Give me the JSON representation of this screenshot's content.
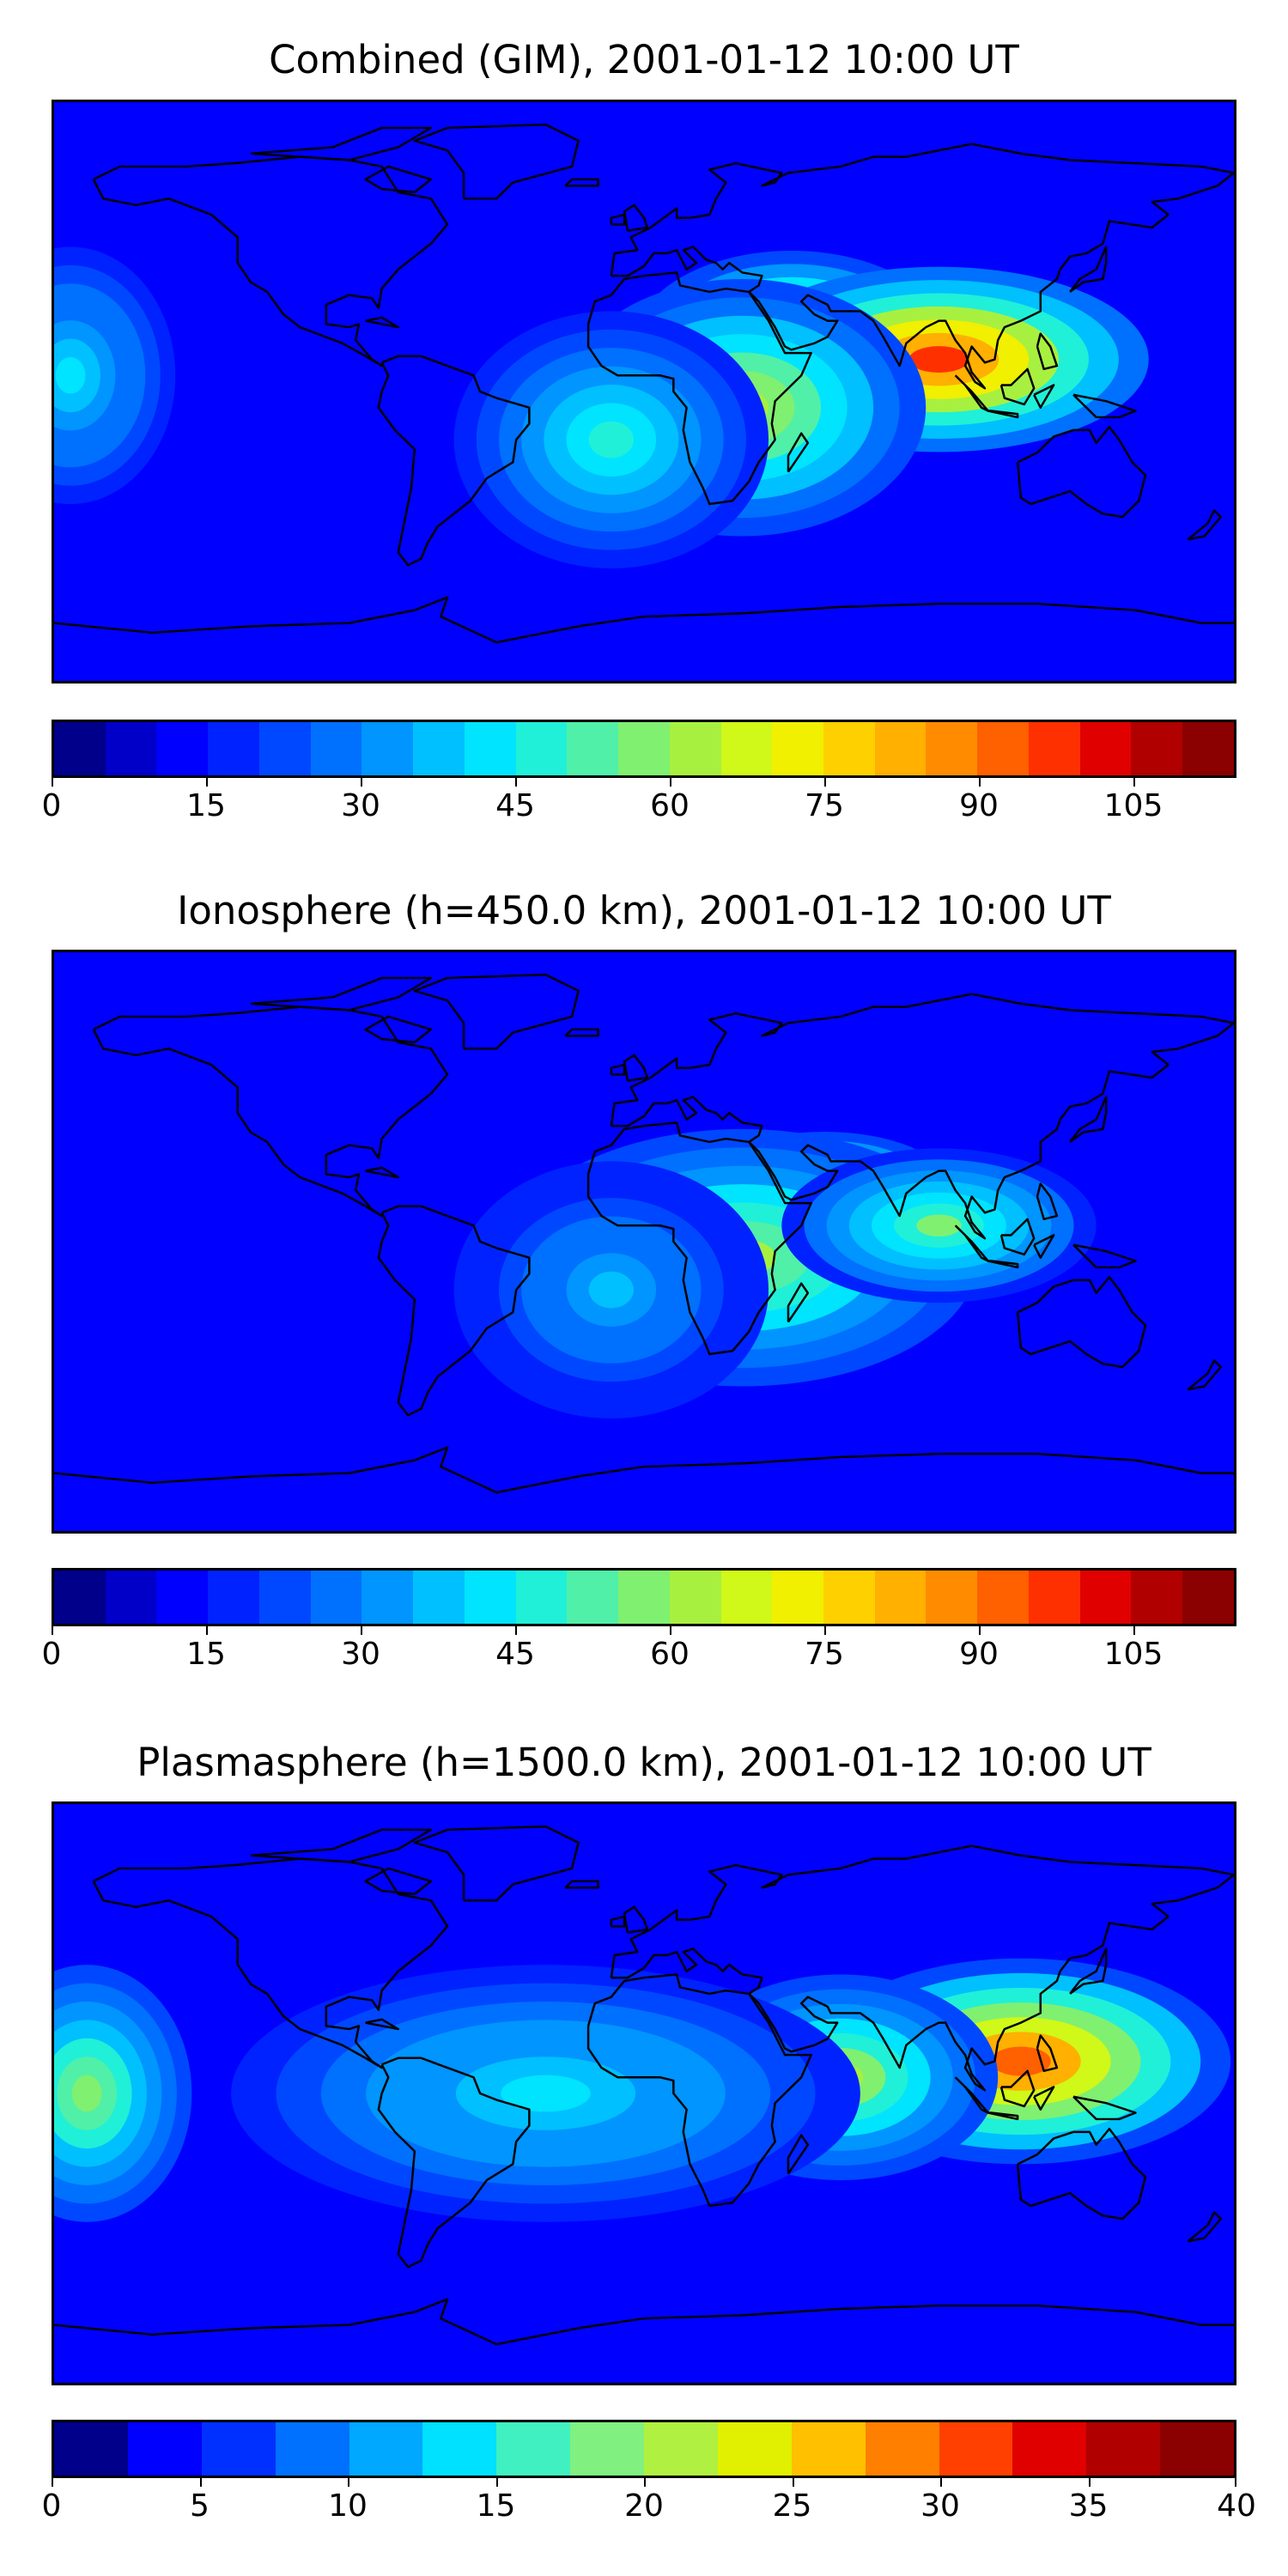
{
  "colors": {
    "fill_levels": [
      "#00008b",
      "#0000c8",
      "#0000ff",
      "#0022ff",
      "#0048ff",
      "#0070ff",
      "#0095ff",
      "#00c0ff",
      "#00e4ff",
      "#20f0d8",
      "#50f0a8",
      "#80f070",
      "#a8f040",
      "#d0f818",
      "#f0f000",
      "#ffd000",
      "#ffb000",
      "#ff8c00",
      "#ff6000",
      "#ff3000",
      "#e00000",
      "#b00000",
      "#8b0000"
    ],
    "colorbar_a": [
      "#00008b",
      "#0000c8",
      "#0000ff",
      "#0022ff",
      "#0048ff",
      "#0070ff",
      "#0095ff",
      "#00c0ff",
      "#00e4ff",
      "#20f0d8",
      "#50f0a8",
      "#80f070",
      "#a8f040",
      "#d0f818",
      "#f0f000",
      "#ffd000",
      "#ffb000",
      "#ff8c00",
      "#ff6000",
      "#ff3000",
      "#e00000",
      "#b00000",
      "#8b0000"
    ],
    "colorbar_c": [
      "#00008b",
      "#0000ff",
      "#0030ff",
      "#0070ff",
      "#00a8ff",
      "#00e0ff",
      "#40f0c0",
      "#80f080",
      "#b0f040",
      "#e0f000",
      "#ffc000",
      "#ff8000",
      "#ff4000",
      "#e00000",
      "#b00000",
      "#8b0000"
    ]
  },
  "chart_data": [
    {
      "type": "heatmap",
      "title": "Combined (GIM), 2001-01-12 10:00 UT",
      "map": "world-coastlines",
      "colorbar": {
        "min": 0,
        "max": 115,
        "step": 5,
        "ticks": [
          0,
          15,
          30,
          45,
          60,
          75,
          90,
          105
        ],
        "tick_labels": [
          "0",
          "15",
          "30",
          "45",
          "60",
          "75",
          "90",
          "105"
        ]
      },
      "blobs": [
        {
          "lon": 45,
          "lat": 15,
          "value": 85,
          "rx_deg": 30,
          "ry_deg": 18
        },
        {
          "lon": 90,
          "lat": 10,
          "value": 95,
          "rx_deg": 40,
          "ry_deg": 18
        },
        {
          "lon": 30,
          "lat": -5,
          "value": 65,
          "rx_deg": 35,
          "ry_deg": 25
        },
        {
          "lon": -10,
          "lat": -15,
          "value": 45,
          "rx_deg": 30,
          "ry_deg": 25
        },
        {
          "lon": -175,
          "lat": 5,
          "value": 40,
          "rx_deg": 20,
          "ry_deg": 25
        }
      ]
    },
    {
      "type": "heatmap",
      "title": "Ionosphere  (h=450.0 km), 2001-01-12 10:00 UT",
      "map": "world-coastlines",
      "colorbar": {
        "min": 0,
        "max": 115,
        "step": 5,
        "ticks": [
          0,
          15,
          30,
          45,
          60,
          75,
          90,
          105
        ],
        "tick_labels": [
          "0",
          "15",
          "30",
          "45",
          "60",
          "75",
          "90",
          "105"
        ]
      },
      "blobs": [
        {
          "lon": 55,
          "lat": 15,
          "value": 80,
          "rx_deg": 25,
          "ry_deg": 12
        },
        {
          "lon": 30,
          "lat": -5,
          "value": 60,
          "rx_deg": 45,
          "ry_deg": 25
        },
        {
          "lon": 90,
          "lat": 5,
          "value": 55,
          "rx_deg": 30,
          "ry_deg": 15
        },
        {
          "lon": -10,
          "lat": -15,
          "value": 35,
          "rx_deg": 30,
          "ry_deg": 25
        }
      ]
    },
    {
      "type": "heatmap",
      "title": "Plasmasphere (h=1500.0 km), 2001-01-12 10:00 UT",
      "map": "world-coastlines",
      "colorbar": {
        "min": 0,
        "max": 40,
        "step": 2.5,
        "ticks": [
          0,
          5,
          10,
          15,
          20,
          25,
          30,
          35,
          40
        ],
        "tick_labels": [
          "0",
          "5",
          "10",
          "15",
          "20",
          "25",
          "30",
          "35",
          "40"
        ]
      },
      "blobs": [
        {
          "lon": 115,
          "lat": 10,
          "value": 32,
          "rx_deg": 40,
          "ry_deg": 20
        },
        {
          "lon": 60,
          "lat": 5,
          "value": 22,
          "rx_deg": 30,
          "ry_deg": 20
        },
        {
          "lon": -170,
          "lat": 0,
          "value": 20,
          "rx_deg": 20,
          "ry_deg": 25
        },
        {
          "lon": -30,
          "lat": 0,
          "value": 15,
          "rx_deg": 60,
          "ry_deg": 25
        }
      ]
    }
  ]
}
